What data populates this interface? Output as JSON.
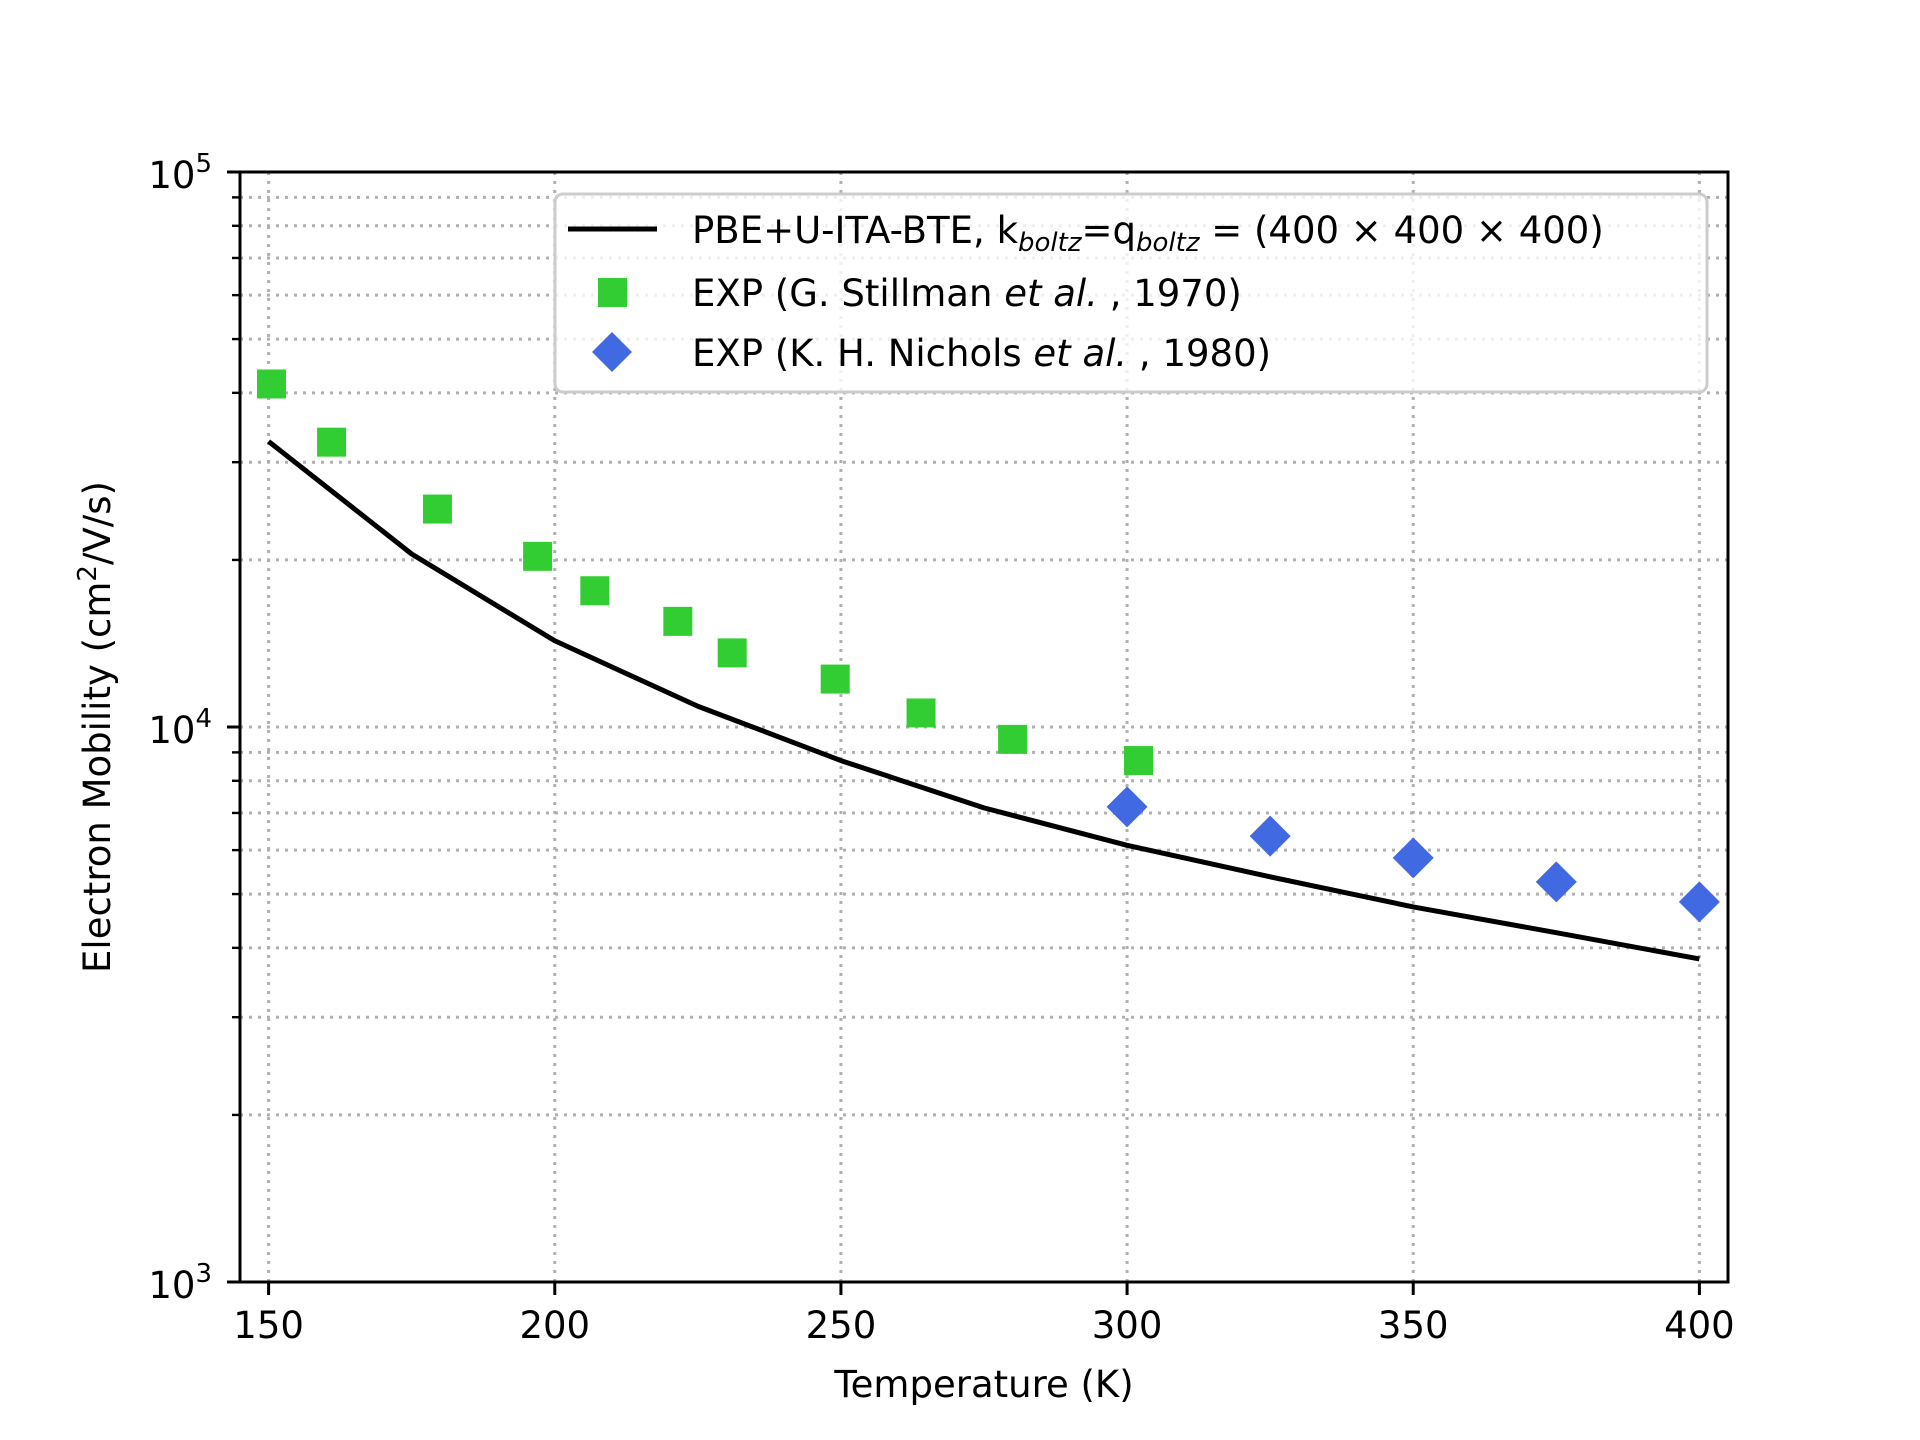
{
  "chart_data": {
    "type": "line",
    "title": "",
    "xlabel": "Temperature (K)",
    "ylabel_main": "Electron Mobility (cm",
    "ylabel_sup": "2",
    "ylabel_tail": "/V/s)",
    "xscale": "linear",
    "yscale": "log",
    "xlim": [
      145,
      405
    ],
    "ylim": [
      1000,
      100000
    ],
    "grid": true,
    "grid_style": "dotted",
    "x_ticks": [
      150,
      200,
      250,
      300,
      350,
      400
    ],
    "x_tick_labels": [
      "150",
      "200",
      "250",
      "300",
      "350",
      "400"
    ],
    "y_ticks": [
      {
        "base": "10",
        "exp": "3",
        "value": 1000
      },
      {
        "base": "10",
        "exp": "4",
        "value": 10000
      },
      {
        "base": "10",
        "exp": "5",
        "value": 100000
      }
    ],
    "legend_position": "upper-right",
    "series": [
      {
        "name": "PBE+U-ITA-BTE",
        "kind": "line",
        "color": "#000000",
        "x": [
          150,
          175,
          200,
          225,
          250,
          275,
          300,
          325,
          350,
          375,
          400
        ],
        "y": [
          32700,
          20500,
          14300,
          10900,
          8700,
          7150,
          6120,
          5370,
          4740,
          4260,
          3820
        ]
      },
      {
        "name": "EXP (G. Stillman et al., 1970)",
        "kind": "scatter",
        "marker": "square",
        "color": "#32cd32",
        "x": [
          150.5,
          161,
          179.5,
          197,
          207,
          221.5,
          231,
          249,
          264,
          280,
          302
        ],
        "y": [
          41500,
          32600,
          24700,
          20300,
          17600,
          15500,
          13600,
          12200,
          10600,
          9500,
          8700
        ]
      },
      {
        "name": "EXP (K. H. Nichols et al., 1980)",
        "kind": "scatter",
        "marker": "diamond",
        "color": "#4169e1",
        "x": [
          300,
          325,
          350,
          375,
          400
        ],
        "y": [
          7180,
          6360,
          5810,
          5260,
          4840
        ]
      }
    ],
    "legend": [
      {
        "marker": "line",
        "color": "#000000",
        "parts": {
          "a": "PBE+U-ITA-BTE, k",
          "sub1": "boltz",
          "b": "=q",
          "sub2": "boltz",
          "c": " = (400 × 400 × 400)"
        }
      },
      {
        "marker": "square",
        "color": "#32cd32",
        "parts": {
          "a": "EXP (G. Stillman ",
          "it": "et al.",
          "b": " , 1970)"
        }
      },
      {
        "marker": "diamond",
        "color": "#4169e1",
        "parts": {
          "a": "EXP (K. H. Nichols ",
          "it": "et al.",
          "b": " , 1980)"
        }
      }
    ]
  }
}
